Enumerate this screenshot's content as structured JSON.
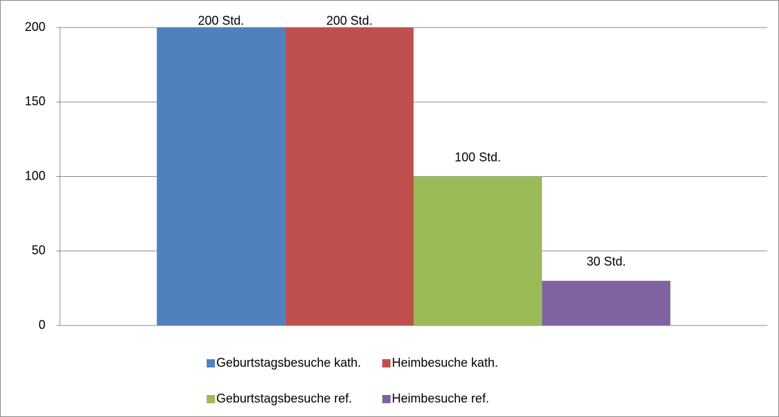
{
  "chart_data": {
    "type": "bar",
    "categories": [
      null
    ],
    "series": [
      {
        "name": "Geburtstagsbesuche kath.",
        "color": "#4f81bd",
        "values": [
          200
        ],
        "value_labels": [
          "200 Std."
        ]
      },
      {
        "name": "Heimbesuche kath.",
        "color": "#c0504d",
        "values": [
          200
        ],
        "value_labels": [
          "200 Std."
        ]
      },
      {
        "name": "Geburtstagsbesuche ref.",
        "color": "#9bbb59",
        "values": [
          100
        ],
        "value_labels": [
          "100 Std."
        ]
      },
      {
        "name": "Heimbesuche ref.",
        "color": "#8064a2",
        "values": [
          30
        ],
        "value_labels": [
          "30 Std."
        ]
      }
    ],
    "ylim": [
      0,
      200
    ],
    "yticks": [
      0,
      50,
      100,
      150,
      200
    ],
    "grid": true,
    "legend": "bottom"
  }
}
